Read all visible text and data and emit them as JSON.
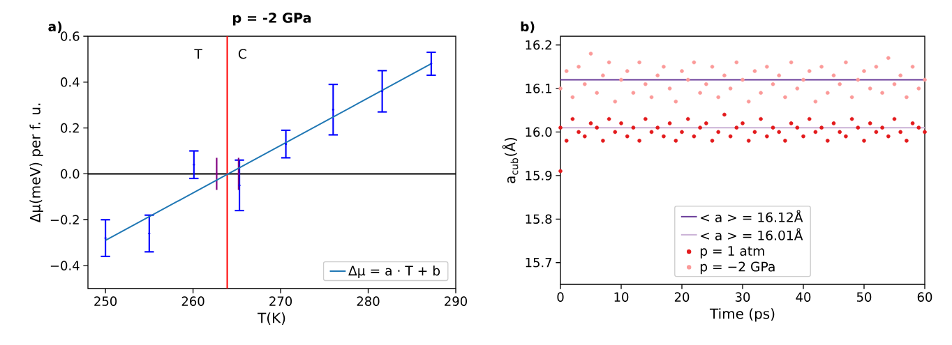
{
  "chart_data": [
    {
      "type": "scatter",
      "title": "p = -2 GPa",
      "xlabel": "T(K)",
      "ylabel": "Δμ(meV) per f. u.",
      "xlim": [
        248,
        290
      ],
      "ylim": [
        -0.5,
        0.6
      ],
      "xticks": [
        250,
        260,
        270,
        280,
        290
      ],
      "yticks": [
        {
          "value": -0.4,
          "label": "−0.4"
        },
        {
          "value": -0.2,
          "label": "−0.2"
        },
        {
          "value": 0,
          "label": "0.0"
        },
        0.2,
        0.4,
        0.6
      ],
      "legend": "bottom right",
      "ref_lines": [
        {
          "axis": "y",
          "value": 0,
          "color": "#000000"
        },
        {
          "axis": "x",
          "value": 263.9,
          "color": "#ff0000"
        }
      ],
      "annotations": [
        "a)",
        "T",
        "C"
      ],
      "series": [
        {
          "type": "scatter",
          "marker": "circle",
          "color": "#0000ff",
          "x": [
            250,
            255,
            260.1,
            265.3,
            270.6,
            276,
            281.6,
            287.2
          ],
          "values": [
            -0.28,
            -0.26,
            0.04,
            -0.05,
            0.13,
            0.28,
            0.36,
            0.48
          ],
          "errors": [
            0.08,
            0.08,
            0.06,
            0.11,
            0.06,
            0.11,
            0.09,
            0.05
          ]
        },
        {
          "type": "scatter",
          "marker": "circle",
          "color": "#800080",
          "x": [
            262.7,
            265.2
          ],
          "values": [
            0,
            0
          ],
          "errors": [
            0.07,
            0.07
          ]
        },
        {
          "type": "line",
          "name": "Δμ = a · T + b",
          "color": "#1f77b4",
          "x": [
            250,
            287.2
          ],
          "values": [
            -0.29,
            0.48
          ]
        }
      ]
    },
    {
      "type": "scatter",
      "xlabel": "Time (ps)",
      "ylabel": "a$_{cub}$(Å)",
      "xlim": [
        0,
        60
      ],
      "ylim": [
        15.65,
        16.22
      ],
      "xticks": [
        0,
        10,
        20,
        30,
        40,
        50,
        60
      ],
      "yticks": [
        15.7,
        15.8,
        15.9,
        {
          "value": 16,
          "label": "16.0"
        },
        16.1,
        16.2
      ],
      "legend": "bottom",
      "annotations": [
        "b)"
      ],
      "series": [
        {
          "type": "line",
          "name": "< a > = 16.12Å",
          "color": "#6a3d9a",
          "x": [
            0,
            60
          ],
          "values": [
            16.12,
            16.12
          ]
        },
        {
          "type": "line",
          "name": "< a > = 16.01Å",
          "color": "#cab2d6",
          "x": [
            0,
            60
          ],
          "values": [
            16.01,
            16.01
          ]
        },
        {
          "type": "scatter",
          "marker": "circle",
          "name": "p = 1 atm",
          "color": "#e31a1c",
          "x": [
            0,
            1,
            2,
            3,
            4,
            5,
            6,
            7,
            8,
            9,
            10,
            11,
            12,
            13,
            14,
            15,
            16,
            17,
            18,
            19,
            20,
            21,
            22,
            23,
            24,
            25,
            26,
            27,
            28,
            29,
            30,
            31,
            32,
            33,
            34,
            35,
            36,
            37,
            38,
            39,
            40,
            41,
            42,
            43,
            44,
            45,
            46,
            47,
            48,
            49,
            50,
            51,
            52,
            53,
            54,
            55,
            56,
            57,
            58,
            59,
            60,
            0
          ],
          "values": [
            16.01,
            15.98,
            16.03,
            16.0,
            15.99,
            16.02,
            16.01,
            15.98,
            16.03,
            16.0,
            16.02,
            15.99,
            16.01,
            15.98,
            16.03,
            16.0,
            16.01,
            15.99,
            16.02,
            15.98,
            16.0,
            16.03,
            15.99,
            16.01,
            16.02,
            15.98,
            16.0,
            16.04,
            15.99,
            16.01,
            16.02,
            15.98,
            16.0,
            16.03,
            15.99,
            16.01,
            16.0,
            15.98,
            16.02,
            16.01,
            15.99,
            16.03,
            16.0,
            16.01,
            15.98,
            16.02,
            16.0,
            15.99,
            16.03,
            16.01,
            15.98,
            16.02,
            16.0,
            16.01,
            15.99,
            16.03,
            16.0,
            15.98,
            16.02,
            16.01,
            16.0,
            15.91
          ]
        },
        {
          "type": "scatter",
          "marker": "circle",
          "name": "p = −2 GPa",
          "color": "#fb9a99",
          "x": [
            0,
            1,
            2,
            3,
            4,
            5,
            6,
            7,
            8,
            9,
            10,
            11,
            12,
            13,
            14,
            15,
            16,
            17,
            18,
            19,
            20,
            21,
            22,
            23,
            24,
            25,
            26,
            27,
            28,
            29,
            30,
            31,
            32,
            33,
            34,
            35,
            36,
            37,
            38,
            39,
            40,
            41,
            42,
            43,
            44,
            45,
            46,
            47,
            48,
            49,
            50,
            51,
            52,
            53,
            54,
            55,
            56,
            57,
            58,
            59,
            60
          ],
          "values": [
            16.1,
            16.14,
            16.08,
            16.15,
            16.11,
            16.18,
            16.09,
            16.13,
            16.16,
            16.07,
            16.12,
            16.14,
            16.09,
            16.16,
            16.11,
            16.08,
            16.13,
            16.15,
            16.1,
            16.07,
            16.14,
            16.12,
            16.16,
            16.09,
            16.11,
            16.15,
            16.08,
            16.13,
            16.1,
            16.16,
            16.12,
            16.07,
            16.14,
            16.09,
            16.15,
            16.11,
            16.13,
            16.08,
            16.16,
            16.1,
            16.12,
            16.14,
            16.07,
            16.15,
            16.09,
            16.13,
            16.11,
            16.16,
            16.08,
            16.12,
            16.14,
            16.1,
            16.15,
            16.09,
            16.17,
            16.11,
            16.13,
            16.08,
            16.15,
            16.1,
            16.12
          ]
        }
      ]
    }
  ]
}
